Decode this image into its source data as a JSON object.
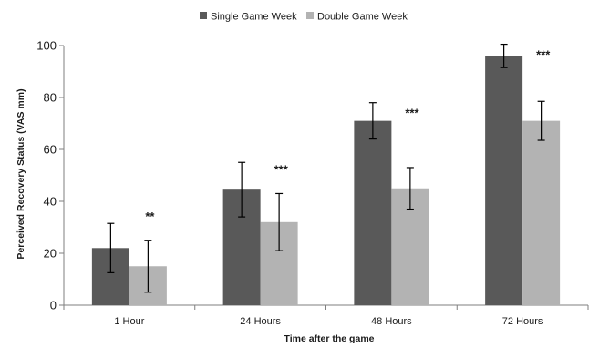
{
  "chart_data": {
    "type": "bar",
    "title": "",
    "xlabel": "Time after the game",
    "ylabel": "Perceived Recovery Status (VAS mm)",
    "ylim": [
      0,
      100
    ],
    "yticks": [
      0,
      20,
      40,
      60,
      80,
      100
    ],
    "grid": false,
    "legend_position": "top-center",
    "categories": [
      "1 Hour",
      "24 Hours",
      "48 Hours",
      "72 Hours"
    ],
    "series": [
      {
        "name": "Single Game Week",
        "color": "#595959",
        "values": [
          22,
          44.5,
          71,
          96
        ],
        "errors": [
          9.5,
          10.5,
          7,
          4.5
        ]
      },
      {
        "name": "Double Game Week",
        "color": "#b3b3b3",
        "values": [
          15,
          32,
          45,
          71
        ],
        "errors": [
          10,
          11,
          8,
          7.5
        ]
      }
    ],
    "annotations": [
      "**",
      "***",
      "***",
      "***"
    ]
  }
}
